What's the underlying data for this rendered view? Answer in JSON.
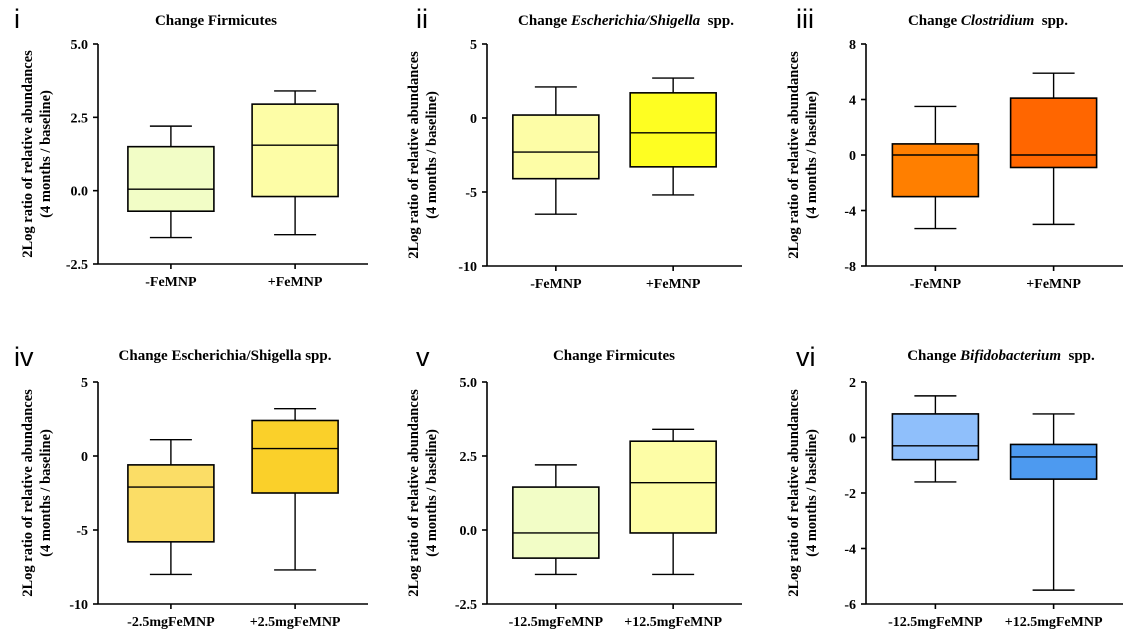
{
  "chart_data": [
    {
      "type": "box",
      "panel": "i",
      "title": "Change Firmicutes",
      "title_italic": "",
      "title_suffix": "",
      "ylabel_line1": "2Log ratio of relative abundances",
      "ylabel_line2": "(4 months / baseline)",
      "ylim": [
        -2.5,
        5.0
      ],
      "yticks": [
        5.0,
        2.5,
        0.0,
        -2.5
      ],
      "ytick_labels": [
        "5.0",
        "2.5",
        "0.0",
        "-2.5"
      ],
      "categories": [
        "-FeMNP",
        "+FeMNP"
      ],
      "boxes": [
        {
          "min": -1.6,
          "q1": -0.7,
          "median": 0.05,
          "q3": 1.5,
          "max": 2.2,
          "color": "#F2FDC6"
        },
        {
          "min": -1.5,
          "q1": -0.2,
          "median": 1.55,
          "q3": 2.95,
          "max": 3.4,
          "color": "#FDFDA6"
        }
      ]
    },
    {
      "type": "box",
      "panel": "ii",
      "title": "Change ",
      "title_italic": "Escherichia/Shigella",
      "title_suffix": "spp.",
      "ylabel_line1": "2Log ratio of relative abundances",
      "ylabel_line2": "(4 months / baseline)",
      "ylim": [
        -10,
        5
      ],
      "yticks": [
        5,
        0,
        -5,
        -10
      ],
      "ytick_labels": [
        "5",
        "0",
        "-5",
        "-10"
      ],
      "categories": [
        "-FeMNP",
        "+FeMNP"
      ],
      "boxes": [
        {
          "min": -6.5,
          "q1": -4.1,
          "median": -2.3,
          "q3": 0.2,
          "max": 2.1,
          "color": "#FDFDA6"
        },
        {
          "min": -5.2,
          "q1": -3.3,
          "median": -1.0,
          "q3": 1.7,
          "max": 2.7,
          "color": "#FEFE22"
        }
      ]
    },
    {
      "type": "box",
      "panel": "iii",
      "title": "Change ",
      "title_italic": "Clostridium",
      "title_suffix": "spp.",
      "ylabel_line1": "2Log ratio of relative abundances",
      "ylabel_line2": "(4 months / baseline)",
      "ylim": [
        -8,
        8
      ],
      "yticks": [
        8,
        4,
        0,
        -4,
        -8
      ],
      "ytick_labels": [
        "8",
        "4",
        "0",
        "-4",
        "-8"
      ],
      "categories": [
        "-FeMNP",
        "+FeMNP"
      ],
      "boxes": [
        {
          "min": -5.3,
          "q1": -3.0,
          "median": 0.0,
          "q3": 0.8,
          "max": 3.5,
          "color": "#FF7F00"
        },
        {
          "min": -5.0,
          "q1": -0.9,
          "median": 0.0,
          "q3": 4.1,
          "max": 5.9,
          "color": "#FF6600"
        }
      ]
    },
    {
      "type": "box",
      "panel": "iv",
      "title": "Change Escherichia/Shigella spp.",
      "title_italic": "",
      "title_suffix": "",
      "ylabel_line1": "2Log ratio of relative abundances",
      "ylabel_line2": "(4 months / baseline)",
      "ylim": [
        -10,
        5
      ],
      "yticks": [
        5,
        0,
        -5,
        -10
      ],
      "ytick_labels": [
        "5",
        "0",
        "-5",
        "-10"
      ],
      "categories": [
        "-2.5mgFeMNP",
        "+2.5mgFeMNP"
      ],
      "boxes": [
        {
          "min": -8.0,
          "q1": -5.8,
          "median": -2.1,
          "q3": -0.6,
          "max": 1.1,
          "color": "#FBDD66"
        },
        {
          "min": -7.7,
          "q1": -2.5,
          "median": 0.5,
          "q3": 2.4,
          "max": 3.2,
          "color": "#FAD02A"
        }
      ]
    },
    {
      "type": "box",
      "panel": "v",
      "title": "Change Firmicutes",
      "title_italic": "",
      "title_suffix": "",
      "ylabel_line1": "2Log ratio of relative abundances",
      "ylabel_line2": "(4 months / baseline)",
      "ylim": [
        -2.5,
        5.0
      ],
      "yticks": [
        5.0,
        2.5,
        0.0,
        -2.5
      ],
      "ytick_labels": [
        "5.0",
        "2.5",
        "0.0",
        "-2.5"
      ],
      "categories": [
        "-12.5mgFeMNP",
        "+12.5mgFeMNP"
      ],
      "boxes": [
        {
          "min": -1.5,
          "q1": -0.95,
          "median": -0.1,
          "q3": 1.45,
          "max": 2.2,
          "color": "#F2FDC6"
        },
        {
          "min": -1.5,
          "q1": -0.1,
          "median": 1.6,
          "q3": 3.0,
          "max": 3.4,
          "color": "#FDFDA6"
        }
      ]
    },
    {
      "type": "box",
      "panel": "vi",
      "title": "Change ",
      "title_italic": "Bifidobacterium",
      "title_suffix": "spp.",
      "ylabel_line1": "2Log ratio of relative abundances",
      "ylabel_line2": "(4 months / baseline)",
      "ylim": [
        -6,
        2
      ],
      "yticks": [
        2,
        0,
        -2,
        -4,
        -6
      ],
      "ytick_labels": [
        "2",
        "0",
        "-2",
        "-4",
        "-6"
      ],
      "categories": [
        "-12.5mgFeMNP",
        "+12.5mgFeMNP"
      ],
      "boxes": [
        {
          "min": -1.6,
          "q1": -0.8,
          "median": -0.3,
          "q3": 0.85,
          "max": 1.5,
          "color": "#8FBFFB"
        },
        {
          "min": -5.5,
          "q1": -1.5,
          "median": -0.7,
          "q3": -0.25,
          "max": 0.85,
          "color": "#4D9AF0"
        }
      ]
    }
  ]
}
